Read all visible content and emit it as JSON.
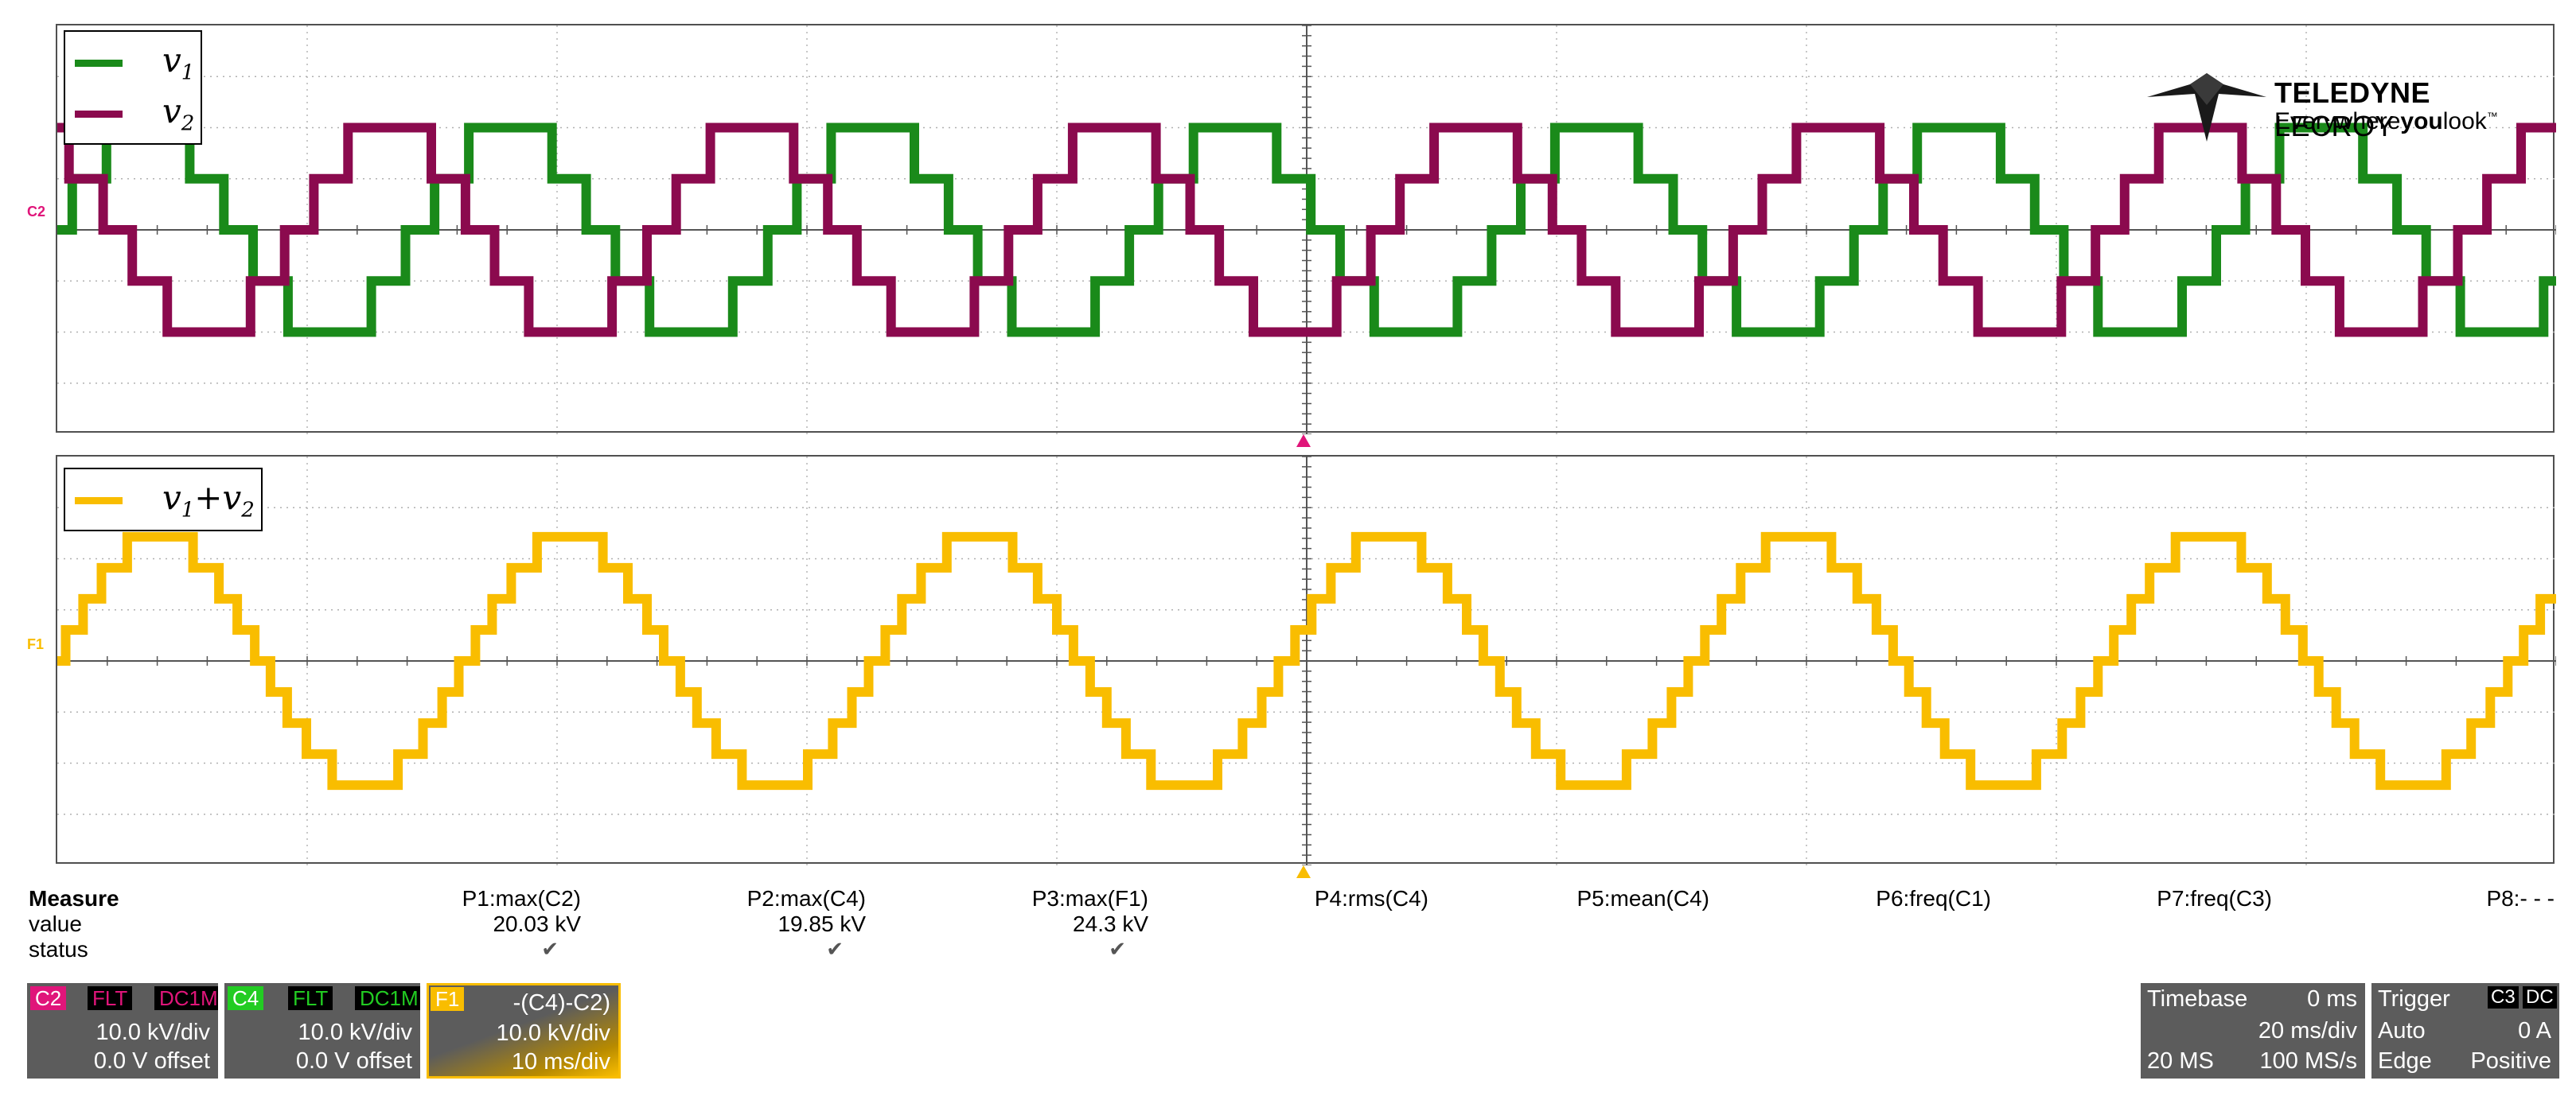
{
  "brand": {
    "name_bold": "TELEDYNE",
    "name_light": "LECROY",
    "tagline_a": "Everywhere",
    "tagline_b": "you",
    "tagline_c": "look",
    "tm": "™"
  },
  "channel_markers": {
    "c2": "C2",
    "f1": "F1"
  },
  "legend_top": {
    "v1": {
      "label": "v1",
      "color": "#1a8a1a"
    },
    "v2": {
      "label": "v2",
      "color": "#8b0a4e"
    }
  },
  "legend_bottom": {
    "sum": {
      "label": "v1+v2",
      "color": "#f9bd00"
    }
  },
  "measure": {
    "title": "Measure",
    "row_value": "value",
    "row_status": "status",
    "params": [
      {
        "name": "P1:max(C2)",
        "value": "20.03 kV",
        "status": "✔"
      },
      {
        "name": "P2:max(C4)",
        "value": "19.85 kV",
        "status": "✔"
      },
      {
        "name": "P3:max(F1)",
        "value": "24.3 kV",
        "status": "✔"
      },
      {
        "name": "P4:rms(C4)",
        "value": "",
        "status": ""
      },
      {
        "name": "P5:mean(C4)",
        "value": "",
        "status": ""
      },
      {
        "name": "P6:freq(C1)",
        "value": "",
        "status": ""
      },
      {
        "name": "P7:freq(C3)",
        "value": "",
        "status": ""
      },
      {
        "name": "P8:- - -",
        "value": "",
        "status": ""
      }
    ]
  },
  "channels": {
    "c2": {
      "id": "C2",
      "flt": "FLT",
      "coupling": "DC1M",
      "scale": "10.0 kV/div",
      "offset": "0.0 V offset",
      "color": "#e0157a"
    },
    "c4": {
      "id": "C4",
      "flt": "FLT",
      "coupling": "DC1M",
      "scale": "10.0 kV/div",
      "offset": "0.0 V offset",
      "color": "#22cc22"
    },
    "f1": {
      "id": "F1",
      "expr": "-(C4)-C2)",
      "scale": "10.0 kV/div",
      "timebase": "10 ms/div",
      "color": "#f9bd00"
    }
  },
  "timebase": {
    "label": "Timebase",
    "delay": "0 ms",
    "per_div": "20 ms/div",
    "samples": "20 MS",
    "rate": "100 MS/s"
  },
  "trigger": {
    "label": "Trigger",
    "source": "C3",
    "coupling": "DC",
    "mode": "Auto",
    "level": "0 A",
    "type": "Edge",
    "slope": "Positive"
  },
  "chart_data": [
    {
      "type": "line",
      "title": "",
      "xlabel": "",
      "ylabel": "",
      "x_divisions": 10,
      "y_divisions": 8,
      "x_per_div": "20 ms/div",
      "y_per_div": "10.0 kV/div",
      "grid": true,
      "legend_placement": "top-left",
      "series": [
        {
          "name": "v1",
          "color": "#1a8a1a",
          "unit": "kV",
          "amplitude": 20,
          "cycles": 6.9,
          "phase_deg": 0,
          "multilevel_steps": 5
        },
        {
          "name": "v2",
          "color": "#8b0a4e",
          "unit": "kV",
          "amplitude": 20,
          "cycles": 6.9,
          "phase_deg": 120,
          "multilevel_steps": 5
        }
      ]
    },
    {
      "type": "line",
      "title": "",
      "xlabel": "",
      "ylabel": "",
      "x_divisions": 10,
      "y_divisions": 8,
      "x_per_div": "10 ms/div",
      "y_per_div": "10.0 kV/div",
      "grid": true,
      "legend_placement": "top-left",
      "series": [
        {
          "name": "v1+v2",
          "color": "#f9bd00",
          "unit": "kV",
          "amplitude": 24.3,
          "cycles": 6.1,
          "phase_deg": 0,
          "multilevel_steps": 9
        }
      ]
    }
  ]
}
